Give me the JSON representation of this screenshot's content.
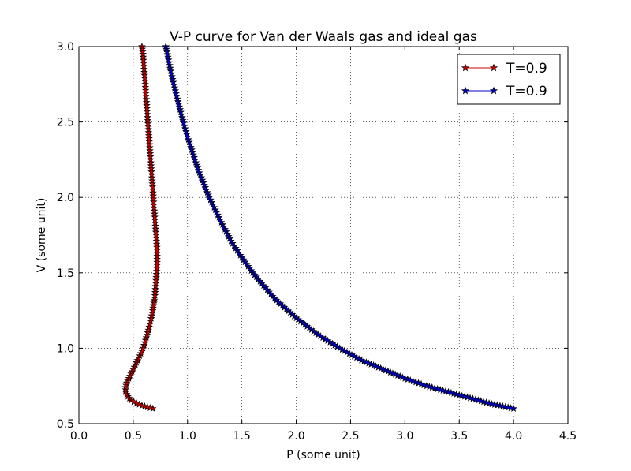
{
  "chart_data": {
    "type": "line",
    "title": "V-P curve for Van der Waals gas and ideal gas",
    "xlabel": "P (some unit)",
    "ylabel": "V (some unit)",
    "xlim": [
      0.0,
      4.5
    ],
    "ylim": [
      0.5,
      3.0
    ],
    "xticks": [
      "0.0",
      "0.5",
      "1.0",
      "1.5",
      "2.0",
      "2.5",
      "3.0",
      "3.5",
      "4.0",
      "4.5"
    ],
    "yticks": [
      "0.5",
      "1.0",
      "1.5",
      "2.0",
      "2.5",
      "3.0"
    ],
    "grid": true,
    "legend_position": "top-right",
    "series": [
      {
        "name": "T=0.9",
        "color": "#cc0000",
        "marker": "star",
        "points": [
          [
            0.68,
            0.6
          ],
          [
            0.63,
            0.61
          ],
          [
            0.58,
            0.62
          ],
          [
            0.53,
            0.635
          ],
          [
            0.48,
            0.655
          ],
          [
            0.45,
            0.68
          ],
          [
            0.43,
            0.71
          ],
          [
            0.43,
            0.74
          ],
          [
            0.44,
            0.77
          ],
          [
            0.46,
            0.8
          ],
          [
            0.48,
            0.83
          ],
          [
            0.5,
            0.86
          ],
          [
            0.52,
            0.89
          ],
          [
            0.54,
            0.92
          ],
          [
            0.56,
            0.95
          ],
          [
            0.58,
            0.98
          ],
          [
            0.6,
            1.02
          ],
          [
            0.62,
            1.07
          ],
          [
            0.64,
            1.12
          ],
          [
            0.66,
            1.18
          ],
          [
            0.68,
            1.25
          ],
          [
            0.7,
            1.35
          ],
          [
            0.71,
            1.45
          ],
          [
            0.72,
            1.55
          ],
          [
            0.72,
            1.65
          ],
          [
            0.71,
            1.75
          ],
          [
            0.7,
            1.85
          ],
          [
            0.69,
            1.95
          ],
          [
            0.68,
            2.05
          ],
          [
            0.67,
            2.15
          ],
          [
            0.66,
            2.25
          ],
          [
            0.65,
            2.35
          ],
          [
            0.64,
            2.45
          ],
          [
            0.63,
            2.55
          ],
          [
            0.62,
            2.65
          ],
          [
            0.61,
            2.75
          ],
          [
            0.6,
            2.85
          ],
          [
            0.59,
            2.95
          ],
          [
            0.58,
            3.0
          ]
        ]
      },
      {
        "name": "T=0.9",
        "color": "#0000cc",
        "marker": "star",
        "points": [
          [
            4.0,
            0.6
          ],
          [
            3.8,
            0.63
          ],
          [
            3.6,
            0.67
          ],
          [
            3.4,
            0.71
          ],
          [
            3.2,
            0.75
          ],
          [
            3.0,
            0.8
          ],
          [
            2.8,
            0.86
          ],
          [
            2.6,
            0.92
          ],
          [
            2.4,
            1.0
          ],
          [
            2.2,
            1.09
          ],
          [
            2.0,
            1.2
          ],
          [
            1.8,
            1.33
          ],
          [
            1.6,
            1.5
          ],
          [
            1.5,
            1.6
          ],
          [
            1.4,
            1.71
          ],
          [
            1.3,
            1.85
          ],
          [
            1.2,
            2.0
          ],
          [
            1.1,
            2.18
          ],
          [
            1.0,
            2.4
          ],
          [
            0.95,
            2.53
          ],
          [
            0.9,
            2.67
          ],
          [
            0.85,
            2.82
          ],
          [
            0.82,
            2.93
          ],
          [
            0.8,
            3.0
          ]
        ]
      }
    ]
  }
}
